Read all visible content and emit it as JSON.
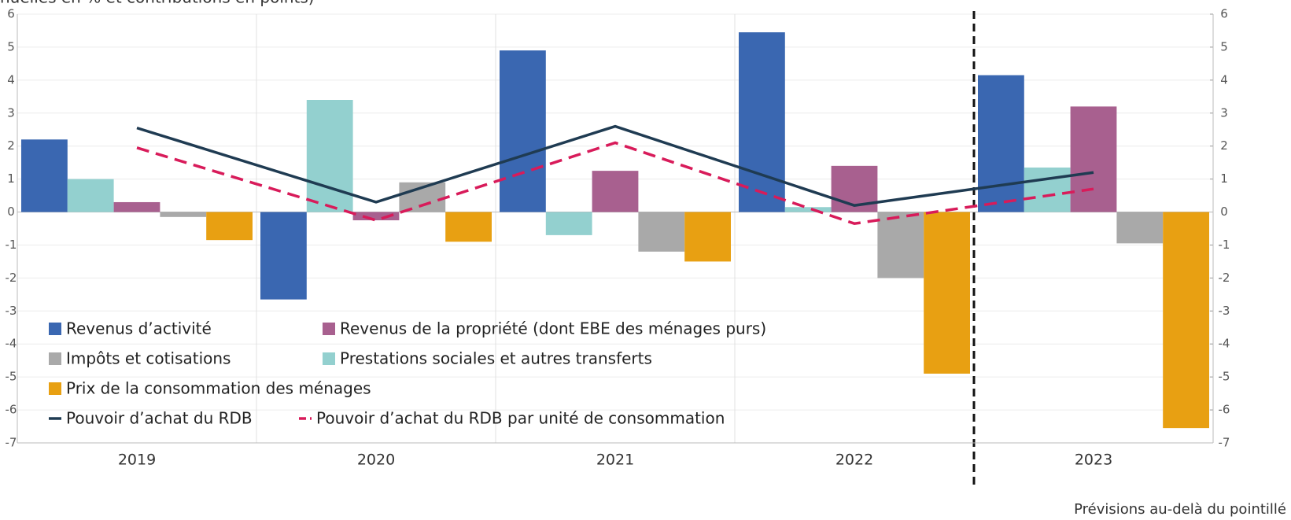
{
  "chart_data": {
    "type": "bar",
    "subtitle": "nuelles en % et contributions en points)",
    "categories": [
      "2019",
      "2020",
      "2021",
      "2022",
      "2023"
    ],
    "series": [
      {
        "name": "Revenus d’activité",
        "color": "#3a67b1",
        "values": [
          2.2,
          -2.65,
          4.9,
          5.45,
          4.15
        ]
      },
      {
        "name": "Prestations sociales et autres transferts",
        "color": "#93d0cf",
        "values": [
          1.0,
          3.4,
          -0.7,
          0.15,
          1.35
        ]
      },
      {
        "name": "Revenus de la propriété (dont EBE des ménages purs)",
        "color": "#a8608f",
        "values": [
          0.3,
          -0.25,
          1.25,
          1.4,
          3.2
        ]
      },
      {
        "name": "Impôts et cotisations",
        "color": "#a9a9a9",
        "values": [
          -0.15,
          0.9,
          -1.2,
          -2.0,
          -0.95
        ]
      },
      {
        "name": "Prix de la consommation des ménages",
        "color": "#e8a012",
        "values": [
          -0.85,
          -0.9,
          -1.5,
          -4.9,
          -6.55
        ]
      },
      {
        "name": "Pouvoir d’achat du RDB",
        "color": "#1f3b52",
        "type": "line",
        "values": [
          2.55,
          0.3,
          2.6,
          0.2,
          1.2
        ]
      },
      {
        "name": "Pouvoir d’achat du RDB par unité de consommation",
        "color": "#d81b5a",
        "type": "line",
        "dashed": true,
        "values": [
          1.95,
          -0.25,
          2.1,
          -0.35,
          0.7
        ]
      }
    ],
    "ylim": [
      -7,
      6
    ],
    "yticks": [
      -7,
      -6,
      -5,
      -4,
      -3,
      -2,
      -1,
      0,
      1,
      2,
      3,
      4,
      5,
      6
    ],
    "y2lim": [
      -7,
      6
    ],
    "y2ticks": [
      -7,
      -6,
      -5,
      -4,
      -3,
      -2,
      -1,
      0,
      1,
      2,
      3,
      4,
      5,
      6
    ],
    "grid": true,
    "annotation": "Prévisions au-delà du pointillé"
  }
}
